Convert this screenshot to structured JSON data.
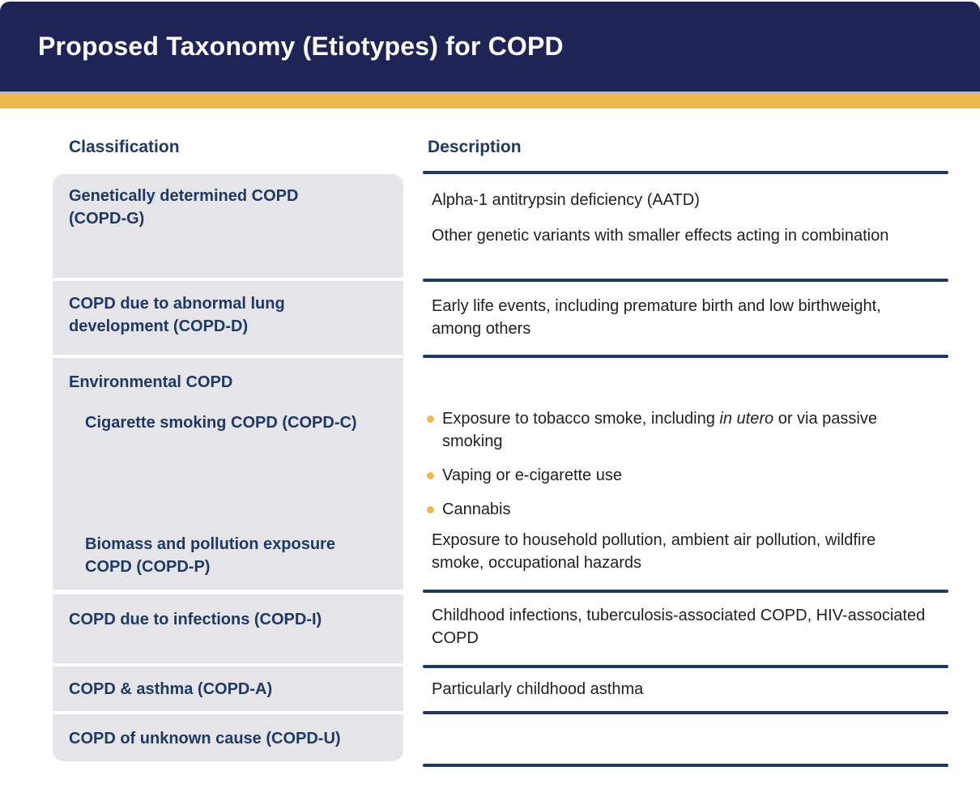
{
  "slide": {
    "title": "Proposed Taxonomy (Etiotypes) for COPD"
  },
  "columns": {
    "classification": "Classification",
    "description": "Description"
  },
  "classification": {
    "genetic": "Genetically determined COPD (COPD-G)",
    "development": "COPD due to abnormal lung development (COPD-D)",
    "environmental": "Environmental COPD",
    "cigarette": "Cigarette smoking COPD (COPD-C)",
    "biomass": "Biomass and pollution exposure COPD (COPD-P)",
    "infections": "COPD due to infections (COPD-I)",
    "asthma": "COPD & asthma (COPD-A)",
    "unknown": "COPD of unknown cause (COPD-U)"
  },
  "description": {
    "genetic_1": "Alpha-1 antitrypsin deficiency (AATD)",
    "genetic_2": "Other genetic variants with smaller effects acting in combination",
    "development": "Early life events, including premature birth and low birthweight, among others",
    "cigarette_bullet_1_pre": "Exposure to tobacco smoke, including ",
    "cigarette_bullet_1_italic": "in utero",
    "cigarette_bullet_1_post": " or via passive smoking",
    "cigarette_bullet_2": "Vaping or e-cigarette use",
    "cigarette_bullet_3": "Cannabis",
    "biomass": "Exposure to household pollution, ambient air pollution, wildfire smoke, occupational hazards",
    "infections": "Childhood infections, tuberculosis-associated COPD, HIV-associated COPD",
    "asthma": "Particularly childhood asthma",
    "unknown": ""
  },
  "colors": {
    "header_navy": "#1e2456",
    "accent_gold": "#ecb94d",
    "text_navy": "#1f3864",
    "row_gray": "#e5e5e9",
    "body_text": "#1f1f1f",
    "divider_gray": "#b7bcc9"
  }
}
